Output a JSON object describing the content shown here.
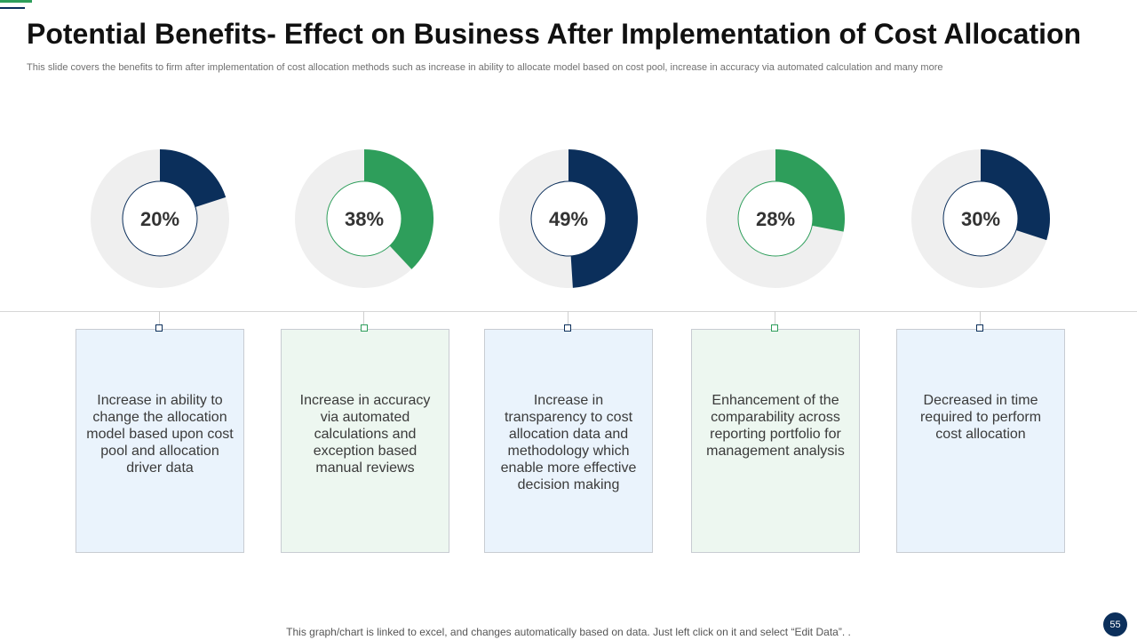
{
  "slide": {
    "title": "Potential Benefits- Effect on Business After Implementation of Cost Allocation",
    "subtitle": "This slide covers the benefits to firm after implementation of cost allocation methods such as increase in ability to allocate model based on cost pool, increase in accuracy via automated calculation and many more",
    "footer_note": "This graph/chart is linked to excel,  and changes automatically based on data. Just left click on it and select “Edit Data”. .",
    "page_number": "55"
  },
  "colors": {
    "navy": "#0b2f5b",
    "green": "#2e9e5b",
    "track": "#efefef",
    "card_blue": "#eaf3fc",
    "card_green": "#edf7f0"
  },
  "benefits": [
    {
      "percent_label": "20%",
      "text": "Increase  in ability to change the allocation model based upon cost pool and allocation driver data",
      "color": "navy"
    },
    {
      "percent_label": "38%",
      "text": "Increase  in accuracy via automated calculations and exception based manual reviews",
      "color": "green"
    },
    {
      "percent_label": "49%",
      "text": "Increase  in transparency  to cost allocation data and methodology which enable more effective decision making",
      "color": "navy"
    },
    {
      "percent_label": "28%",
      "text": "Enhancement  of the comparability across reporting portfolio for management analysis",
      "color": "green"
    },
    {
      "percent_label": "30%",
      "text": "Decreased in time required to perform cost allocation",
      "color": "navy"
    }
  ],
  "chart_data": {
    "type": "pie",
    "subtype": "donut",
    "categories": [
      "Increase  in ability to change the allocation model based upon cost pool and allocation driver data",
      "Increase  in accuracy via automated calculations and exception based manual reviews",
      "Increase  in transparency  to cost allocation data and methodology which enable more effective decision making",
      "Enhancement  of the comparability across reporting portfolio for management analysis",
      "Decreased in time required to perform cost allocation"
    ],
    "values": [
      20,
      38,
      49,
      28,
      30
    ],
    "unit": "%",
    "max": 100
  }
}
